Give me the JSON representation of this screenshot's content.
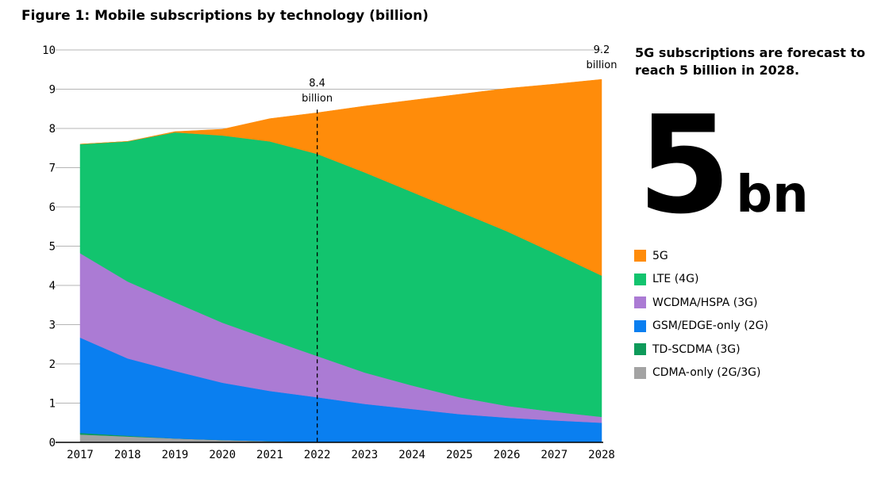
{
  "title": "Figure 1: Mobile subscriptions by technology (billion)",
  "headline": "5G subscriptions are forecast to reach 5 billion in 2028.",
  "big_number": {
    "value": "5",
    "unit": "bn"
  },
  "chart_data": {
    "type": "area",
    "stacked": true,
    "title": "Figure 1: Mobile subscriptions by technology (billion)",
    "xlabel": "",
    "ylabel": "",
    "x": [
      "2017",
      "2018",
      "2019",
      "2020",
      "2021",
      "2022",
      "2023",
      "2024",
      "2025",
      "2026",
      "2027",
      "2028"
    ],
    "ylim": [
      0,
      10
    ],
    "yticks": [
      "0",
      "1",
      "2",
      "3",
      "4",
      "5",
      "6",
      "7",
      "8",
      "9",
      "10"
    ],
    "grid": "horizontal",
    "legend": "right",
    "series": [
      {
        "name": "CDMA-only (2G/3G)",
        "color": "#a3a3a3",
        "values": [
          0.2,
          0.15,
          0.1,
          0.06,
          0.03,
          0.01,
          0,
          0,
          0,
          0,
          0,
          0
        ]
      },
      {
        "name": "TD-SCDMA (3G)",
        "color": "#0e9a5a",
        "values": [
          0.04,
          0.02,
          0,
          0,
          0,
          0,
          0,
          0,
          0,
          0,
          0,
          0
        ]
      },
      {
        "name": "GSM/EDGE-only (2G)",
        "color": "#0a7ff0",
        "values": [
          2.43,
          1.97,
          1.72,
          1.46,
          1.28,
          1.14,
          0.98,
          0.85,
          0.72,
          0.63,
          0.56,
          0.5
        ]
      },
      {
        "name": "WCDMA/HSPA (3G)",
        "color": "#ab7bd4",
        "values": [
          2.15,
          1.96,
          1.75,
          1.53,
          1.31,
          1.05,
          0.8,
          0.6,
          0.43,
          0.3,
          0.22,
          0.15
        ]
      },
      {
        "name": "LTE (4G)",
        "color": "#12c46e",
        "values": [
          2.78,
          3.57,
          4.33,
          4.77,
          5.05,
          5.15,
          5.1,
          4.93,
          4.73,
          4.45,
          4.04,
          3.6
        ]
      },
      {
        "name": "5G",
        "color": "#ff8c0a",
        "values": [
          0,
          0,
          0.02,
          0.16,
          0.58,
          1.05,
          1.69,
          2.34,
          2.99,
          3.64,
          4.31,
          5.0
        ]
      }
    ],
    "annotations": [
      {
        "x": "2022",
        "line1": "8.4",
        "line2": "billion",
        "dashed_line": true
      },
      {
        "x": "2028",
        "line1": "9.2",
        "line2": "billion"
      }
    ]
  }
}
